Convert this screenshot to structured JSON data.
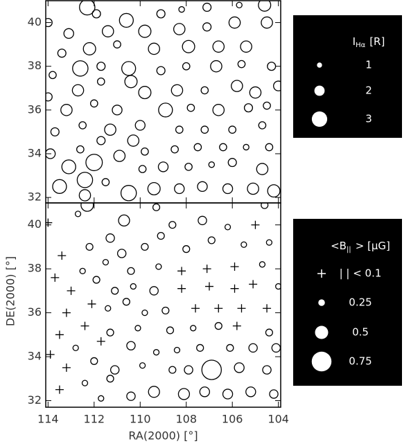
{
  "chart_data": [
    {
      "type": "bubble",
      "color": "#000",
      "x": [
        114.0,
        111.9,
        112.3,
        110.6,
        109.1,
        108.2,
        107.1,
        105.7,
        104.6,
        113.1,
        111.4,
        109.8,
        108.3,
        107.1,
        105.9,
        104.5,
        113.4,
        112.2,
        111.0,
        109.4,
        107.9,
        106.6,
        105.4,
        113.8,
        112.6,
        111.7,
        110.5,
        109.1,
        108.0,
        106.7,
        105.6,
        104.3,
        114.0,
        112.7,
        111.7,
        110.4,
        109.8,
        108.4,
        107.2,
        105.8,
        105.0,
        104.0,
        113.2,
        112.0,
        111.0,
        108.9,
        107.8,
        106.6,
        105.3,
        104.5,
        113.7,
        112.5,
        111.3,
        110.0,
        108.3,
        107.2,
        106.0,
        104.7,
        113.9,
        112.6,
        111.7,
        110.3,
        109.8,
        108.5,
        107.5,
        106.4,
        105.4,
        104.4,
        113.1,
        112.0,
        110.9,
        109.9,
        109.0,
        107.9,
        106.9,
        106.0,
        104.7,
        113.5,
        112.4,
        111.5,
        110.5,
        109.4,
        108.3,
        107.3,
        106.2,
        105.1,
        104.2,
        112.4
      ],
      "y": [
        40.0,
        40.4,
        40.7,
        40.1,
        40.4,
        40.6,
        40.7,
        40.8,
        40.8,
        39.5,
        39.6,
        39.6,
        39.7,
        39.8,
        40.0,
        40.0,
        38.6,
        38.8,
        39.0,
        38.8,
        38.9,
        38.9,
        38.9,
        37.6,
        37.9,
        38.0,
        37.9,
        37.8,
        38.0,
        38.0,
        38.1,
        38.0,
        36.6,
        36.9,
        37.3,
        37.3,
        36.8,
        36.9,
        36.9,
        37.1,
        36.8,
        37.1,
        36.0,
        36.3,
        36.0,
        36.0,
        36.1,
        36.0,
        36.1,
        36.2,
        35.0,
        35.3,
        35.1,
        35.3,
        35.1,
        35.1,
        35.1,
        35.3,
        34.0,
        34.2,
        34.6,
        34.6,
        34.1,
        34.2,
        34.3,
        34.3,
        34.3,
        34.3,
        33.4,
        33.6,
        33.9,
        33.3,
        33.4,
        33.4,
        33.5,
        33.6,
        33.3,
        32.5,
        32.8,
        32.7,
        32.2,
        32.4,
        32.4,
        32.5,
        32.4,
        32.4,
        32.3,
        32.1
      ],
      "size": [
        1.6,
        1.6,
        3.0,
        2.7,
        1.6,
        1.1,
        1.6,
        1.1,
        2.4,
        1.9,
        2.2,
        2.4,
        2.2,
        1.6,
        2.2,
        2.2,
        1.6,
        2.4,
        1.4,
        2.2,
        2.4,
        2.2,
        2.2,
        1.4,
        3.0,
        1.6,
        2.7,
        1.6,
        1.4,
        2.2,
        1.4,
        1.6,
        1.6,
        2.2,
        1.4,
        2.4,
        2.4,
        2.2,
        1.4,
        2.2,
        2.2,
        1.9,
        2.2,
        1.4,
        1.9,
        2.7,
        1.4,
        2.2,
        1.6,
        1.4,
        1.6,
        1.4,
        2.2,
        1.9,
        1.4,
        1.4,
        1.4,
        1.4,
        1.9,
        1.4,
        1.6,
        2.2,
        1.4,
        1.4,
        1.4,
        1.4,
        1.1,
        1.4,
        2.7,
        3.2,
        2.2,
        1.4,
        1.9,
        1.4,
        1.1,
        1.6,
        2.2,
        2.7,
        3.0,
        1.4,
        3.0,
        2.4,
        1.9,
        1.9,
        1.9,
        2.2,
        2.4,
        2.2
      ],
      "xlim": [
        114.1,
        103.9
      ],
      "ylim": [
        31.75,
        41
      ],
      "xticks": [
        114,
        112,
        110,
        108,
        106,
        104
      ],
      "yticks": [
        32,
        34,
        36,
        38,
        40
      ],
      "legend_title": {
        "main": "I",
        "sub": "Hα",
        "rest": "[R]"
      },
      "legend": [
        1,
        2,
        3
      ]
    },
    {
      "type": "bubble",
      "color": "#000",
      "x": [
        114.0,
        112.3,
        112.7,
        110.7,
        109.3,
        108.6,
        107.3,
        106.2,
        105.0,
        104.6,
        113.4,
        112.2,
        111.3,
        110.8,
        109.8,
        109.1,
        108.0,
        106.9,
        105.5,
        104.4,
        113.7,
        112.5,
        111.5,
        110.4,
        109.2,
        108.2,
        107.1,
        105.9,
        104.7,
        113.0,
        111.9,
        111.1,
        110.3,
        109.4,
        108.2,
        107.0,
        105.9,
        105.1,
        104.0,
        113.2,
        112.1,
        111.4,
        110.6,
        109.8,
        108.9,
        107.6,
        106.6,
        105.6,
        104.5,
        113.5,
        112.4,
        111.3,
        110.1,
        108.7,
        107.7,
        106.6,
        105.8,
        104.4,
        113.9,
        112.8,
        111.7,
        110.4,
        109.3,
        108.4,
        107.4,
        106.1,
        105.1,
        104.1,
        113.2,
        112.0,
        111.1,
        109.9,
        108.6,
        107.9,
        106.9,
        105.7,
        104.5,
        113.5,
        112.4,
        111.3,
        110.4,
        109.4,
        108.1,
        107.2,
        106.2,
        105.2,
        104.2,
        111.7
      ],
      "y": [
        40.1,
        40.9,
        40.5,
        40.2,
        40.8,
        40.0,
        40.2,
        39.9,
        40.0,
        40.9,
        38.6,
        39.0,
        39.4,
        38.7,
        39.0,
        39.5,
        38.9,
        39.3,
        39.1,
        39.2,
        37.6,
        37.9,
        38.3,
        37.9,
        38.1,
        37.9,
        38.0,
        38.1,
        38.2,
        37.0,
        37.5,
        37.0,
        37.2,
        37.0,
        37.1,
        37.2,
        37.1,
        37.3,
        37.2,
        36.0,
        36.4,
        36.2,
        36.5,
        36.0,
        36.1,
        36.2,
        36.2,
        36.2,
        36.2,
        35.0,
        35.4,
        35.1,
        35.3,
        35.2,
        35.3,
        35.4,
        35.4,
        35.1,
        34.1,
        34.4,
        34.7,
        34.5,
        34.2,
        34.3,
        34.4,
        34.4,
        34.4,
        34.4,
        33.5,
        33.8,
        33.4,
        33.6,
        33.4,
        33.4,
        33.4,
        33.5,
        33.4,
        32.5,
        32.8,
        33.0,
        32.2,
        32.4,
        32.3,
        32.4,
        32.3,
        32.4,
        32.3,
        32.1
      ],
      "size": [
        0.05,
        0.47,
        0.21,
        0.42,
        0.26,
        0.26,
        0.32,
        0.21,
        0.05,
        0.26,
        0.05,
        0.26,
        0.32,
        0.32,
        0.26,
        0.26,
        0.26,
        0.26,
        0.21,
        0.21,
        0.05,
        0.21,
        0.21,
        0.26,
        0.21,
        0.05,
        0.05,
        0.05,
        0.21,
        0.05,
        0.26,
        0.26,
        0.21,
        0.32,
        0.05,
        0.05,
        0.05,
        0.05,
        0.21,
        0.05,
        0.05,
        0.21,
        0.26,
        0.21,
        0.26,
        0.05,
        0.05,
        0.05,
        0.05,
        0.05,
        0.05,
        0.26,
        0.21,
        0.26,
        0.21,
        0.26,
        0.05,
        0.26,
        0.05,
        0.21,
        0.05,
        0.32,
        0.21,
        0.21,
        0.26,
        0.26,
        0.32,
        0.32,
        0.05,
        0.26,
        0.32,
        0.21,
        0.26,
        0.32,
        0.74,
        0.37,
        0.32,
        0.05,
        0.21,
        0.26,
        0.32,
        0.42,
        0.42,
        0.37,
        0.37,
        0.37,
        0.32,
        0.21
      ],
      "xlim": [
        114.1,
        103.9
      ],
      "ylim": [
        31.7,
        41
      ],
      "xticks": [
        114,
        112,
        110,
        108,
        106,
        104
      ],
      "yticks": [
        32,
        34,
        36,
        38,
        40
      ],
      "xlabel": "RA(2000) [°]",
      "ylabel": "DE(2000) [°]",
      "legend_title": {
        "main": "<B",
        "sub": "||",
        "rest": "> [μG]"
      },
      "legend": [
        {
          "value": 0.1,
          "label": "| | < 0.1"
        },
        0.25,
        0.5,
        0.75
      ]
    }
  ]
}
